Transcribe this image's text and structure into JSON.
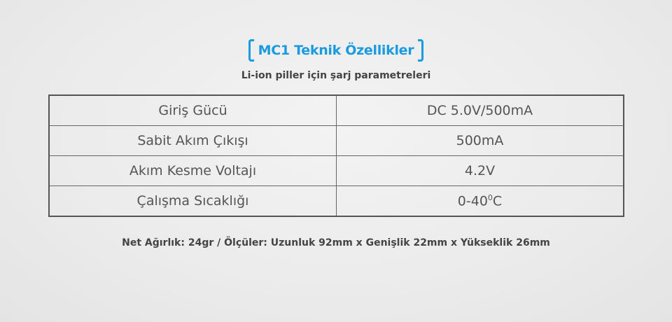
{
  "title": "MC1 Teknik Özellikler",
  "subtitle": "Li-ion piller için şarj parametreleri",
  "accent_color": "#1a9be0",
  "specs": [
    {
      "label": "Giriş Gücü",
      "value": "DC 5.0V/500mA"
    },
    {
      "label": "Sabit Akım Çıkışı",
      "value": "500mA"
    },
    {
      "label": "Akım Kesme Voltajı",
      "value": "4.2V"
    },
    {
      "label": "Çalışma Sıcaklığı",
      "value": "0-40",
      "value_sup": "0",
      "value_suffix": "C"
    }
  ],
  "footer": "Net Ağırlık: 24gr / Ölçüler: Uzunluk 92mm x Genişlik 22mm x Yükseklik 26mm"
}
